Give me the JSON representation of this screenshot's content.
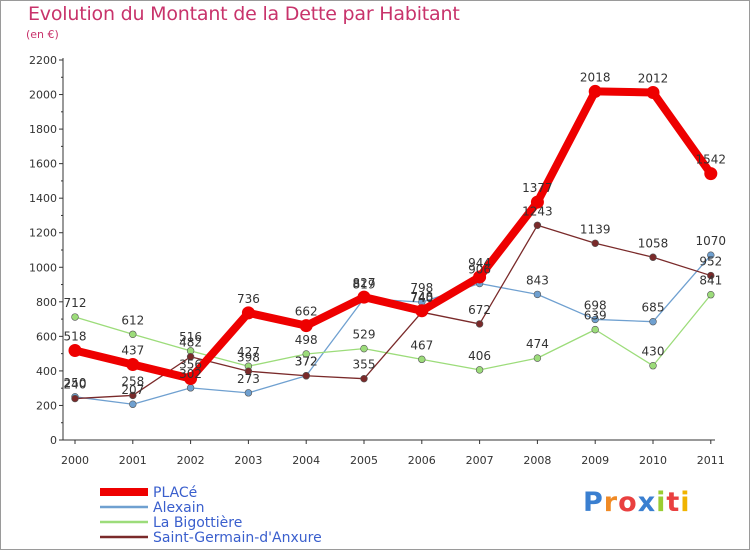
{
  "chart_data": {
    "type": "line",
    "title": "Evolution du Montant de la Dette par Habitant",
    "subtitle": "(en €)",
    "x": [
      "2000",
      "2001",
      "2002",
      "2003",
      "2004",
      "2005",
      "2006",
      "2007",
      "2008",
      "2009",
      "2010",
      "2011"
    ],
    "ylim": [
      0,
      2200
    ],
    "yticks": [
      0,
      200,
      400,
      600,
      800,
      1000,
      1200,
      1400,
      1600,
      1800,
      2000,
      2200
    ],
    "grid": false,
    "legend_position": "bottom-left",
    "series": [
      {
        "name": "PLACé",
        "color": "#ee0000",
        "values": [
          518,
          437,
          356,
          736,
          662,
          827,
          748,
          944,
          1377,
          2018,
          2012,
          1542
        ],
        "labels": [
          "518",
          "437",
          "356",
          "736",
          "662",
          "827",
          "748",
          "944",
          "1377",
          "2018",
          "2012",
          "1542"
        ]
      },
      {
        "name": "Alexain",
        "color": "#6fa0d0",
        "values": [
          250,
          207,
          302,
          273,
          372,
          819,
          798,
          906,
          843,
          698,
          685,
          1070
        ],
        "labels": [
          "250",
          "207",
          "302",
          "273",
          "372",
          "819",
          "798",
          "906",
          "843",
          "698",
          "685",
          "1070"
        ]
      },
      {
        "name": "La Bigottière",
        "color": "#9cdc7a",
        "values": [
          712,
          612,
          516,
          427,
          498,
          529,
          467,
          406,
          474,
          639,
          430,
          841
        ],
        "labels": [
          "712",
          "612",
          "516",
          "427",
          "498",
          "529",
          "467",
          "406",
          "474",
          "639",
          "430",
          "841"
        ]
      },
      {
        "name": "Saint-Germain-d'Anxure",
        "color": "#7a2a2a",
        "values": [
          240,
          258,
          482,
          398,
          372,
          355,
          740,
          672,
          1243,
          1139,
          1058,
          952
        ],
        "labels": [
          "240",
          "258",
          "482",
          "398",
          "372",
          "355",
          "740",
          "672",
          "1243",
          "1139",
          "1058",
          "952"
        ]
      }
    ]
  },
  "logo": {
    "letters": [
      "P",
      "r",
      "o",
      "x",
      "i",
      "t",
      "i"
    ],
    "colors": [
      "#3a7fd0",
      "#f08a24",
      "#e94040",
      "#3a7fd0",
      "#9acd32",
      "#e94040",
      "#f0b400"
    ]
  }
}
